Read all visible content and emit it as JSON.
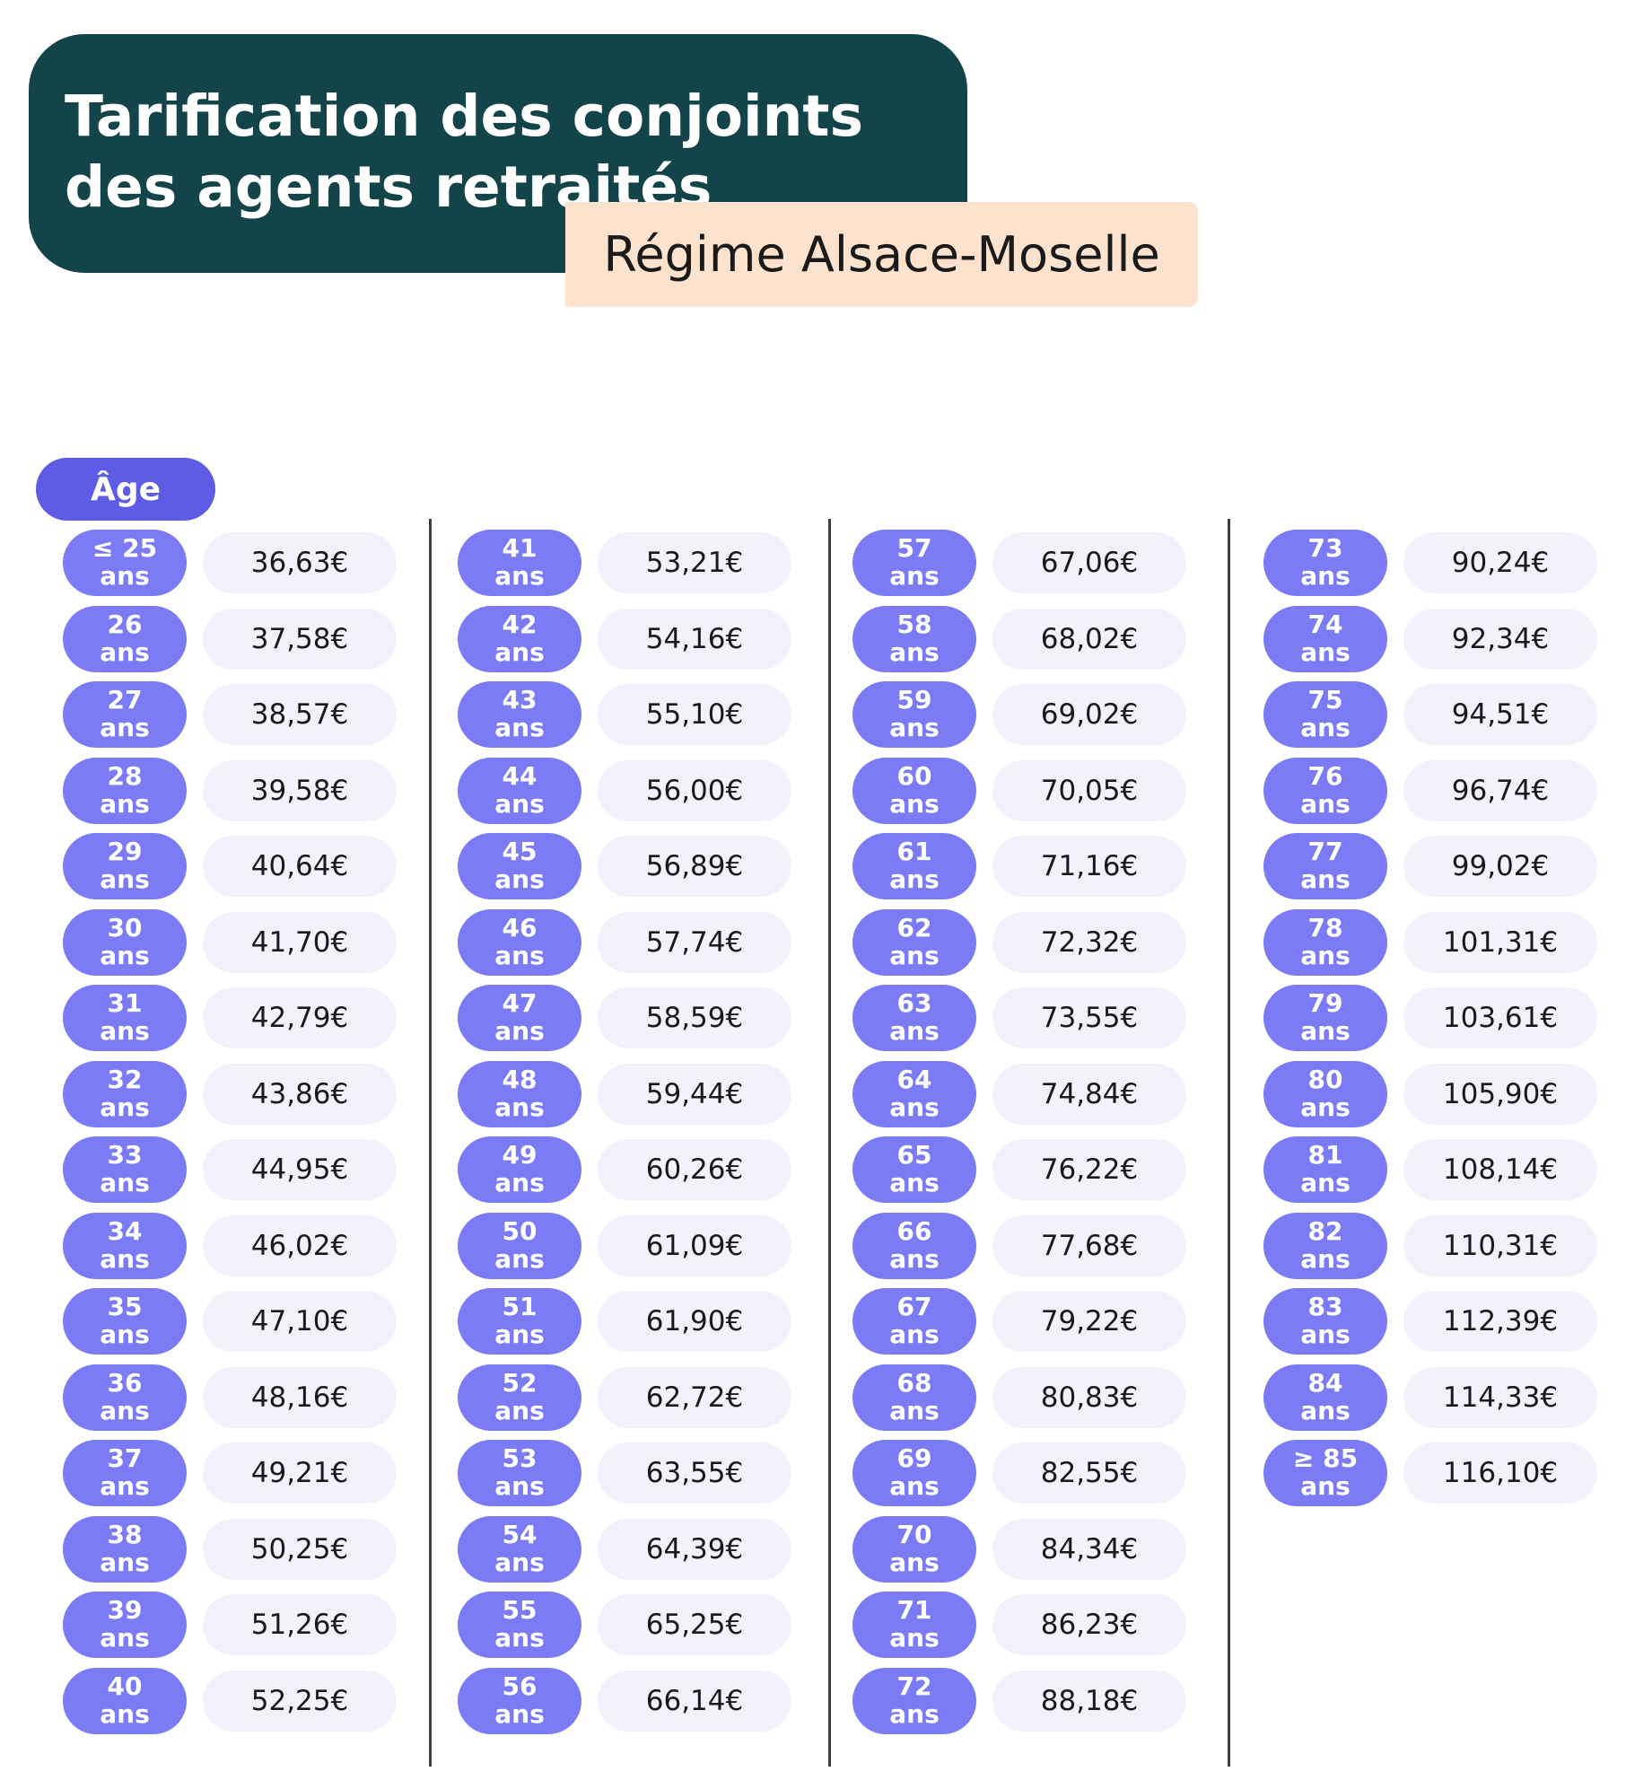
{
  "header": {
    "title": "Tarification des conjoints des agents retraités",
    "subtitle": "Régime Alsace-Moselle"
  },
  "table": {
    "column_header": "Âge",
    "unit": "ans",
    "columns": [
      [
        {
          "age": "≤ 25",
          "price": "36,63€"
        },
        {
          "age": "26",
          "price": "37,58€"
        },
        {
          "age": "27",
          "price": "38,57€"
        },
        {
          "age": "28",
          "price": "39,58€"
        },
        {
          "age": "29",
          "price": "40,64€"
        },
        {
          "age": "30",
          "price": "41,70€"
        },
        {
          "age": "31",
          "price": "42,79€"
        },
        {
          "age": "32",
          "price": "43,86€"
        },
        {
          "age": "33",
          "price": "44,95€"
        },
        {
          "age": "34",
          "price": "46,02€"
        },
        {
          "age": "35",
          "price": "47,10€"
        },
        {
          "age": "36",
          "price": "48,16€"
        },
        {
          "age": "37",
          "price": "49,21€"
        },
        {
          "age": "38",
          "price": "50,25€"
        },
        {
          "age": "39",
          "price": "51,26€"
        },
        {
          "age": "40",
          "price": "52,25€"
        }
      ],
      [
        {
          "age": "41",
          "price": "53,21€"
        },
        {
          "age": "42",
          "price": "54,16€"
        },
        {
          "age": "43",
          "price": "55,10€"
        },
        {
          "age": "44",
          "price": "56,00€"
        },
        {
          "age": "45",
          "price": "56,89€"
        },
        {
          "age": "46",
          "price": "57,74€"
        },
        {
          "age": "47",
          "price": "58,59€"
        },
        {
          "age": "48",
          "price": "59,44€"
        },
        {
          "age": "49",
          "price": "60,26€"
        },
        {
          "age": "50",
          "price": "61,09€"
        },
        {
          "age": "51",
          "price": "61,90€"
        },
        {
          "age": "52",
          "price": "62,72€"
        },
        {
          "age": "53",
          "price": "63,55€"
        },
        {
          "age": "54",
          "price": "64,39€"
        },
        {
          "age": "55",
          "price": "65,25€"
        },
        {
          "age": "56",
          "price": "66,14€"
        }
      ],
      [
        {
          "age": "57",
          "price": "67,06€"
        },
        {
          "age": "58",
          "price": "68,02€"
        },
        {
          "age": "59",
          "price": "69,02€"
        },
        {
          "age": "60",
          "price": "70,05€"
        },
        {
          "age": "61",
          "price": "71,16€"
        },
        {
          "age": "62",
          "price": "72,32€"
        },
        {
          "age": "63",
          "price": "73,55€"
        },
        {
          "age": "64",
          "price": "74,84€"
        },
        {
          "age": "65",
          "price": "76,22€"
        },
        {
          "age": "66",
          "price": "77,68€"
        },
        {
          "age": "67",
          "price": "79,22€"
        },
        {
          "age": "68",
          "price": "80,83€"
        },
        {
          "age": "69",
          "price": "82,55€"
        },
        {
          "age": "70",
          "price": "84,34€"
        },
        {
          "age": "71",
          "price": "86,23€"
        },
        {
          "age": "72",
          "price": "88,18€"
        }
      ],
      [
        {
          "age": "73",
          "price": "90,24€"
        },
        {
          "age": "74",
          "price": "92,34€"
        },
        {
          "age": "75",
          "price": "94,51€"
        },
        {
          "age": "76",
          "price": "96,74€"
        },
        {
          "age": "77",
          "price": "99,02€"
        },
        {
          "age": "78",
          "price": "101,31€"
        },
        {
          "age": "79",
          "price": "103,61€"
        },
        {
          "age": "80",
          "price": "105,90€"
        },
        {
          "age": "81",
          "price": "108,14€"
        },
        {
          "age": "82",
          "price": "110,31€"
        },
        {
          "age": "83",
          "price": "112,39€"
        },
        {
          "age": "84",
          "price": "114,33€"
        },
        {
          "age": "≥ 85",
          "price": "116,10€"
        }
      ]
    ]
  },
  "colors": {
    "title_card_bg": "#13444a",
    "subtitle_bg": "#fde3cd",
    "age_header_bg": "#5e5ce6",
    "age_badge_bg": "#7b7bf5",
    "price_pill_bg": "#f2f1fe"
  }
}
